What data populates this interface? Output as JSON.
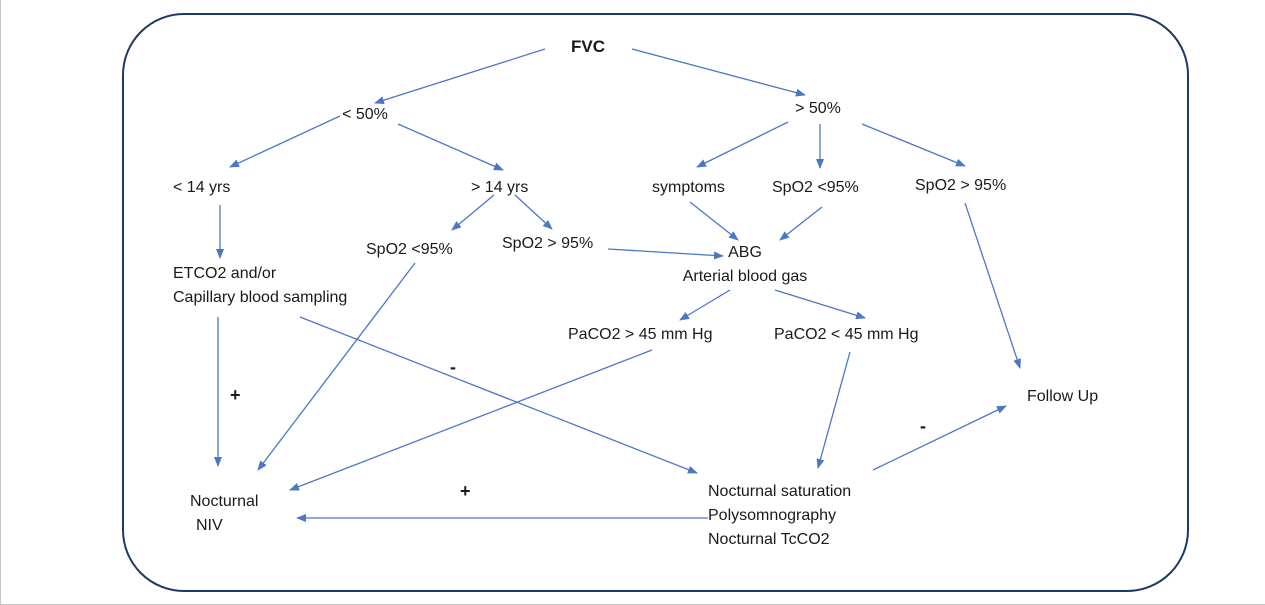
{
  "diagram": {
    "nodes": {
      "fvc": "FVC",
      "lt50": "< 50%",
      "gt50": "> 50%",
      "lt14": "< 14 yrs",
      "gt14": "> 14 yrs",
      "spo2_lt95_left": "SpO2 <95%",
      "spo2_gt95_left": "SpO2 > 95%",
      "symptoms": "symptoms",
      "spo2_lt95_right": "SpO2 <95%",
      "spo2_gt95_right": "SpO2 > 95%",
      "abg": [
        "ABG",
        "Arterial blood gas"
      ],
      "etco2": [
        "ETCO2 and/or",
        "Capillary blood sampling"
      ],
      "paco2_gt45": "PaCO2 > 45 mm Hg",
      "paco2_lt45": "PaCO2 < 45 mm Hg",
      "follow_up": "Follow Up",
      "nocturnal_niv": [
        "Nocturnal",
        "NIV"
      ],
      "nocturnal_tests": [
        "Nocturnal saturation",
        "Polysomnography",
        "Nocturnal TcCO2"
      ]
    },
    "signs": {
      "plus_left": "+",
      "minus_center": "-",
      "plus_bottom": "+",
      "minus_right": "-"
    },
    "colors": {
      "arrow": "#4a78c4",
      "border": "#1c3a63"
    }
  }
}
